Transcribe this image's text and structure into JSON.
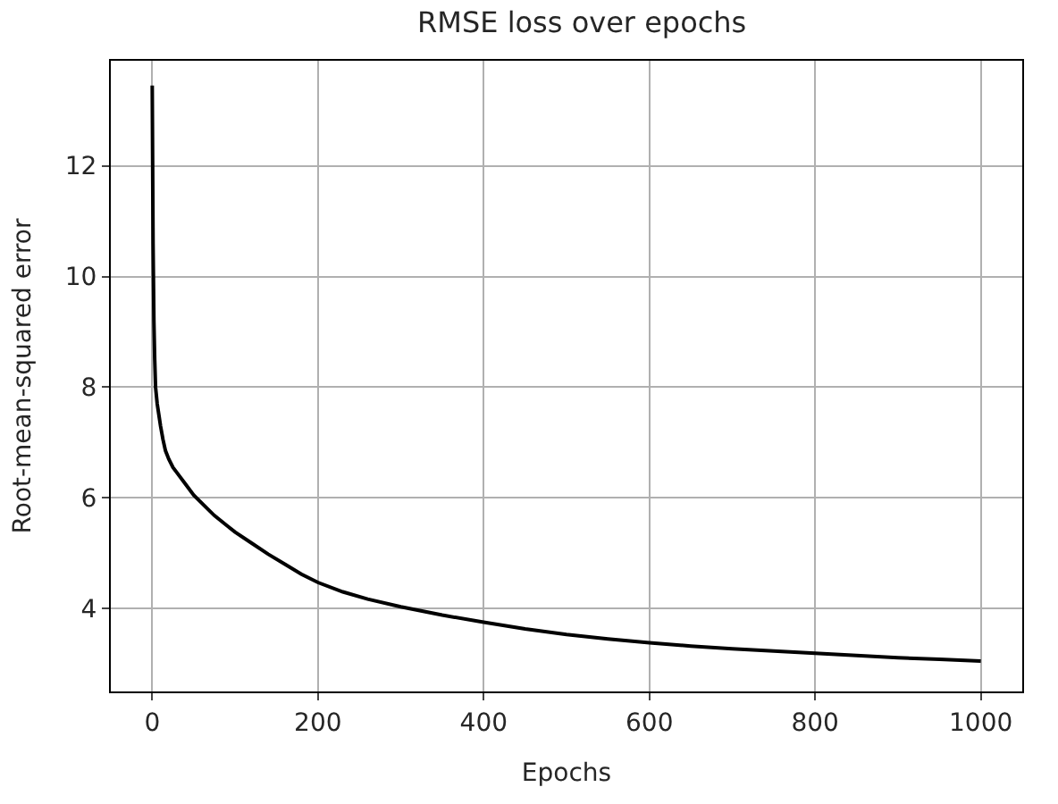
{
  "chart_data": {
    "type": "line",
    "title": "RMSE loss over epochs",
    "xlabel": "Epochs",
    "ylabel": "Root-mean-squared error",
    "x": [
      0,
      1,
      2,
      3,
      4,
      6,
      8,
      10,
      13,
      16,
      20,
      25,
      30,
      40,
      50,
      60,
      75,
      90,
      100,
      120,
      140,
      160,
      180,
      200,
      230,
      260,
      300,
      350,
      400,
      450,
      500,
      550,
      600,
      650,
      700,
      750,
      800,
      850,
      900,
      950,
      1000
    ],
    "series": [
      {
        "color": "#000000",
        "values": [
          13.45,
          10.6,
          9.2,
          8.5,
          8.0,
          7.7,
          7.5,
          7.3,
          7.05,
          6.85,
          6.7,
          6.55,
          6.45,
          6.25,
          6.05,
          5.9,
          5.68,
          5.5,
          5.38,
          5.18,
          4.98,
          4.8,
          4.62,
          4.47,
          4.3,
          4.17,
          4.03,
          3.88,
          3.75,
          3.63,
          3.53,
          3.45,
          3.38,
          3.32,
          3.27,
          3.23,
          3.19,
          3.15,
          3.11,
          3.08,
          3.05
        ]
      }
    ],
    "xlim": [
      -50,
      1050
    ],
    "ylim": [
      2.5,
      13.9
    ],
    "xticks": [
      0,
      200,
      400,
      600,
      800,
      1000
    ],
    "yticks": [
      4,
      6,
      8,
      10,
      12
    ],
    "grid": true,
    "legend": false,
    "marker": "none",
    "line_style": "solid"
  }
}
